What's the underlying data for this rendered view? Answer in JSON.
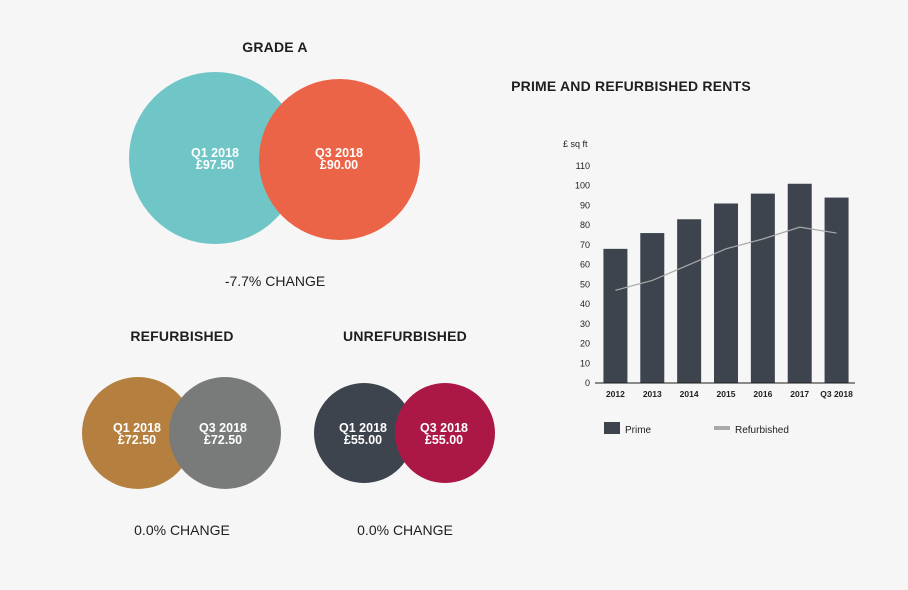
{
  "colors": {
    "teal": "#70c5c6",
    "coral": "#ec6447",
    "bronze": "#b5803f",
    "grey": "#787b79",
    "charcoal": "#3d444d",
    "crimson": "#ab1846",
    "line_grey": "#a9a9a9"
  },
  "grade_a": {
    "heading": "GRADE A",
    "q1": {
      "period": "Q1 2018",
      "value": "£97.50"
    },
    "q3": {
      "period": "Q3 2018",
      "value": "£90.00"
    },
    "change": "-7.7% CHANGE"
  },
  "refurbished": {
    "heading": "REFURBISHED",
    "q1": {
      "period": "Q1 2018",
      "value": "£72.50"
    },
    "q3": {
      "period": "Q3 2018",
      "value": "£72.50"
    },
    "change": "0.0% CHANGE"
  },
  "unrefurbished": {
    "heading": "UNREFURBISHED",
    "q1": {
      "period": "Q1 2018",
      "value": "£55.00"
    },
    "q3": {
      "period": "Q3 2018",
      "value": "£55.00"
    },
    "change": "0.0% CHANGE"
  },
  "chart_data": {
    "type": "bar",
    "title": "PRIME AND REFURBISHED RENTS",
    "ylabel": "£ sq ft",
    "xlabel": "",
    "ylim": [
      0,
      110
    ],
    "yticks": [
      0,
      10,
      20,
      30,
      40,
      50,
      60,
      70,
      80,
      90,
      100,
      110
    ],
    "categories": [
      "2012",
      "2013",
      "2014",
      "2015",
      "2016",
      "2017",
      "Q3 2018"
    ],
    "series": [
      {
        "name": "Prime",
        "kind": "bar",
        "values": [
          68,
          76,
          83,
          91,
          96,
          101,
          94
        ]
      },
      {
        "name": "Refurbished",
        "kind": "line",
        "values": [
          47,
          52,
          60,
          68,
          73,
          79,
          76
        ]
      }
    ],
    "legend": {
      "placement": "bottom",
      "items": [
        "Prime",
        "Refurbished"
      ]
    },
    "grid": false
  }
}
